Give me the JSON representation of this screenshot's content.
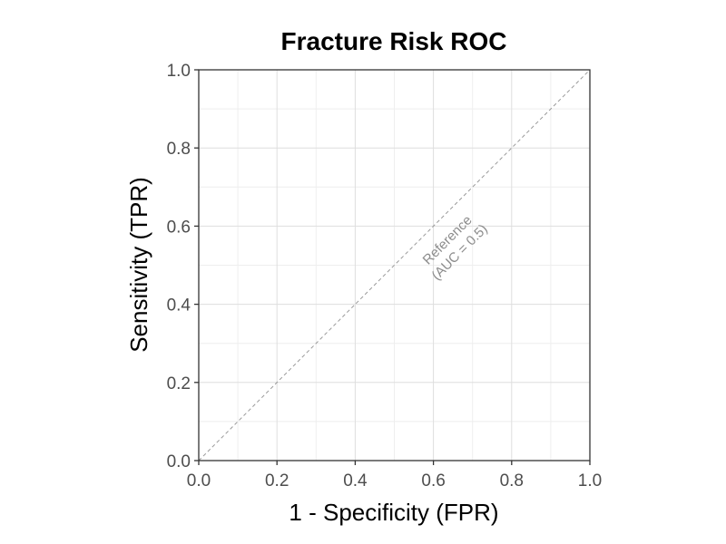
{
  "chart_data": {
    "type": "line",
    "title": "Fracture Risk ROC",
    "xlabel": "1 - Specificity (FPR)",
    "ylabel": "Sensitivity (TPR)",
    "xlim": [
      0,
      1
    ],
    "ylim": [
      0,
      1
    ],
    "x_ticks": [
      "0.0",
      "0.2",
      "0.4",
      "0.6",
      "0.8",
      "1.0"
    ],
    "y_ticks": [
      "0.0",
      "0.2",
      "0.4",
      "0.6",
      "0.8",
      "1.0"
    ],
    "grid": true,
    "series": [
      {
        "x": [
          0,
          1
        ],
        "y": [
          0,
          1
        ],
        "style": "dashed",
        "color": "#9a9a9a"
      }
    ],
    "annotations": [
      {
        "lines": [
          "Reference",
          "(AUC = 0.5)"
        ],
        "x": 0.65,
        "y": 0.55,
        "angle": 45,
        "color": "#8c8c8c"
      }
    ]
  }
}
